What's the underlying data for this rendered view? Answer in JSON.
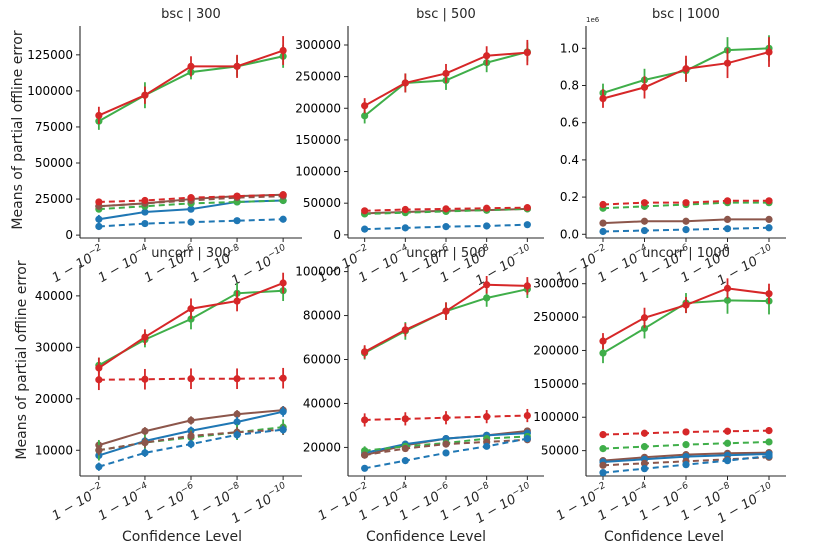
{
  "figure": {
    "ylabel": "Means of partial offline error",
    "xlabel": "Confidence Level",
    "confidence_levels": [
      "1 − 10^−2",
      "1 − 10^−4",
      "1 − 10^−6",
      "1 − 10^−8",
      "1 − 10^−10"
    ]
  },
  "colors": {
    "blue": "#1f77b4",
    "green": "#3fae49",
    "red": "#d62728",
    "brown": "#8c564b"
  },
  "chart_data": [
    {
      "type": "line",
      "title": "bsc | 300",
      "xlabel": "",
      "ylabel": "Means of partial offline error",
      "categories": [
        "1-1e-2",
        "1-1e-4",
        "1-1e-6",
        "1-1e-8",
        "1-1e-10"
      ],
      "ylim": [
        -2000,
        145000
      ],
      "yticks": [
        0,
        25000,
        50000,
        75000,
        100000,
        125000
      ],
      "ytick_labels": [
        "0",
        "25000",
        "50000",
        "75000",
        "100000",
        "125000"
      ],
      "exponent": "",
      "series": [
        {
          "color": "green",
          "style": "solid",
          "values": [
            79000,
            97000,
            113000,
            117000,
            124000
          ],
          "err": [
            6000,
            9000,
            5000,
            7000,
            8000
          ]
        },
        {
          "color": "red",
          "style": "solid",
          "values": [
            83000,
            97000,
            117000,
            117000,
            128000
          ],
          "err": [
            6000,
            6000,
            7000,
            8000,
            10000
          ]
        },
        {
          "color": "blue",
          "style": "solid",
          "values": [
            11000,
            16000,
            18000,
            23000,
            24000
          ],
          "err": [
            3000,
            2000,
            2000,
            2000,
            2000
          ]
        },
        {
          "color": "brown",
          "style": "solid",
          "values": [
            20000,
            22000,
            25000,
            27000,
            28000
          ],
          "err": [
            1500,
            1500,
            1500,
            1500,
            1500
          ]
        },
        {
          "color": "green",
          "style": "dashed",
          "values": [
            18000,
            20000,
            22000,
            23000,
            24000
          ],
          "err": [
            1500,
            1500,
            1500,
            1500,
            1500
          ]
        },
        {
          "color": "brown",
          "style": "dashed",
          "values": [
            20000,
            22000,
            24000,
            26000,
            27000
          ],
          "err": [
            1500,
            1500,
            1500,
            1500,
            1500
          ]
        },
        {
          "color": "red",
          "style": "dashed",
          "values": [
            23000,
            24000,
            26000,
            27000,
            28000
          ],
          "err": [
            1500,
            1500,
            1500,
            1500,
            1500
          ]
        },
        {
          "color": "blue",
          "style": "dashed",
          "values": [
            6000,
            8000,
            9000,
            10000,
            11000
          ],
          "err": [
            1000,
            1000,
            1000,
            1000,
            1000
          ]
        }
      ]
    },
    {
      "type": "line",
      "title": "bsc | 500",
      "xlabel": "",
      "ylabel": "",
      "categories": [
        "1-1e-2",
        "1-1e-4",
        "1-1e-6",
        "1-1e-8",
        "1-1e-10"
      ],
      "ylim": [
        -5000,
        330000
      ],
      "yticks": [
        0,
        50000,
        100000,
        150000,
        200000,
        250000,
        300000
      ],
      "ytick_labels": [
        "0",
        "50000",
        "100000",
        "150000",
        "200000",
        "250000",
        "300000"
      ],
      "exponent": "",
      "series": [
        {
          "color": "green",
          "style": "solid",
          "values": [
            188000,
            240000,
            244000,
            272000,
            289000
          ],
          "err": [
            12000,
            15000,
            15000,
            15000,
            15000
          ]
        },
        {
          "color": "red",
          "style": "solid",
          "values": [
            204000,
            240000,
            255000,
            283000,
            288000
          ],
          "err": [
            12000,
            15000,
            15000,
            15000,
            20000
          ]
        },
        {
          "color": "brown",
          "style": "solid",
          "values": [
            34000,
            36000,
            38000,
            39000,
            41000
          ],
          "err": [
            2000,
            2000,
            2000,
            2000,
            2000
          ]
        },
        {
          "color": "green",
          "style": "dashed",
          "values": [
            33000,
            35000,
            37000,
            39000,
            41000
          ],
          "err": [
            2000,
            2000,
            2000,
            2000,
            2000
          ]
        },
        {
          "color": "red",
          "style": "dashed",
          "values": [
            38000,
            40000,
            41000,
            42000,
            43000
          ],
          "err": [
            2000,
            2000,
            2000,
            2000,
            2000
          ]
        },
        {
          "color": "blue",
          "style": "dashed",
          "values": [
            9000,
            11000,
            13000,
            14000,
            16000
          ],
          "err": [
            1000,
            1000,
            1000,
            1000,
            1000
          ]
        }
      ]
    },
    {
      "type": "line",
      "title": "bsc | 1000",
      "xlabel": "",
      "ylabel": "",
      "categories": [
        "1-1e-2",
        "1-1e-4",
        "1-1e-6",
        "1-1e-8",
        "1-1e-10"
      ],
      "ylim": [
        -0.02,
        1.12
      ],
      "yticks": [
        0.0,
        0.2,
        0.4,
        0.6,
        0.8,
        1.0
      ],
      "ytick_labels": [
        "0.0",
        "0.2",
        "0.4",
        "0.6",
        "0.8",
        "1.0"
      ],
      "exponent": "1e6",
      "series": [
        {
          "color": "green",
          "style": "solid",
          "values": [
            0.76,
            0.83,
            0.88,
            0.99,
            1.0
          ],
          "err": [
            0.05,
            0.06,
            0.06,
            0.07,
            0.07
          ]
        },
        {
          "color": "red",
          "style": "solid",
          "values": [
            0.73,
            0.79,
            0.89,
            0.92,
            0.98
          ],
          "err": [
            0.05,
            0.06,
            0.07,
            0.08,
            0.08
          ]
        },
        {
          "color": "green",
          "style": "dashed",
          "values": [
            0.14,
            0.15,
            0.16,
            0.17,
            0.17
          ],
          "err": [
            0.01,
            0.01,
            0.01,
            0.01,
            0.01
          ]
        },
        {
          "color": "red",
          "style": "dashed",
          "values": [
            0.16,
            0.17,
            0.17,
            0.18,
            0.18
          ],
          "err": [
            0.01,
            0.01,
            0.01,
            0.01,
            0.01
          ]
        },
        {
          "color": "brown",
          "style": "solid",
          "values": [
            0.06,
            0.07,
            0.07,
            0.08,
            0.08
          ],
          "err": [
            0.005,
            0.005,
            0.005,
            0.005,
            0.005
          ]
        },
        {
          "color": "blue",
          "style": "dashed",
          "values": [
            0.015,
            0.02,
            0.025,
            0.03,
            0.035
          ],
          "err": [
            0.003,
            0.003,
            0.003,
            0.003,
            0.003
          ]
        }
      ]
    },
    {
      "type": "line",
      "title": "uncorr | 300",
      "xlabel": "Confidence Level",
      "ylabel": "Means of partial offline error",
      "categories": [
        "1-1e-2",
        "1-1e-4",
        "1-1e-6",
        "1-1e-8",
        "1-1e-10"
      ],
      "ylim": [
        5000,
        46000
      ],
      "yticks": [
        10000,
        20000,
        30000,
        40000
      ],
      "ytick_labels": [
        "10000",
        "20000",
        "30000",
        "40000"
      ],
      "exponent": "",
      "series": [
        {
          "color": "green",
          "style": "solid",
          "values": [
            26500,
            31500,
            35500,
            40500,
            41000
          ],
          "err": [
            1500,
            1500,
            2000,
            2000,
            2000
          ]
        },
        {
          "color": "red",
          "style": "solid",
          "values": [
            26000,
            32000,
            37500,
            39000,
            42500
          ],
          "err": [
            2000,
            1500,
            2000,
            2000,
            2000
          ]
        },
        {
          "color": "red",
          "style": "dashed",
          "values": [
            23700,
            23800,
            23900,
            23900,
            24000
          ],
          "err": [
            2000,
            2000,
            2000,
            2000,
            2000
          ]
        },
        {
          "color": "brown",
          "style": "solid",
          "values": [
            11000,
            13700,
            15800,
            17000,
            17800
          ],
          "err": [
            800,
            800,
            800,
            800,
            800
          ]
        },
        {
          "color": "blue",
          "style": "solid",
          "values": [
            9000,
            11800,
            13800,
            15500,
            17500
          ],
          "err": [
            800,
            800,
            800,
            1000,
            1000
          ]
        },
        {
          "color": "green",
          "style": "dashed",
          "values": [
            10000,
            11500,
            12500,
            13500,
            14500
          ],
          "err": [
            2000,
            1500,
            1500,
            1500,
            1500
          ]
        },
        {
          "color": "brown",
          "style": "dashed",
          "values": [
            10000,
            11500,
            12800,
            13500,
            14000
          ],
          "err": [
            1000,
            1000,
            1000,
            1000,
            1000
          ]
        },
        {
          "color": "blue",
          "style": "dashed",
          "values": [
            6800,
            9500,
            11200,
            13000,
            14000
          ],
          "err": [
            800,
            800,
            800,
            800,
            800
          ]
        }
      ]
    },
    {
      "type": "line",
      "title": "uncorr | 500",
      "xlabel": "Confidence Level",
      "ylabel": "",
      "categories": [
        "1-1e-2",
        "1-1e-4",
        "1-1e-6",
        "1-1e-8",
        "1-1e-10"
      ],
      "ylim": [
        7000,
        103000
      ],
      "yticks": [
        20000,
        40000,
        60000,
        80000,
        100000
      ],
      "ytick_labels": [
        "20000",
        "40000",
        "60000",
        "80000",
        "100000"
      ],
      "exponent": "",
      "series": [
        {
          "color": "green",
          "style": "solid",
          "values": [
            63000,
            73000,
            82000,
            88000,
            92000
          ],
          "err": [
            3000,
            4000,
            4000,
            4000,
            4000
          ]
        },
        {
          "color": "red",
          "style": "solid",
          "values": [
            63500,
            73500,
            82000,
            94000,
            93500
          ],
          "err": [
            3000,
            3000,
            4000,
            4000,
            4000
          ]
        },
        {
          "color": "red",
          "style": "dashed",
          "values": [
            32500,
            33000,
            33500,
            34000,
            34500
          ],
          "err": [
            3000,
            3000,
            3000,
            3000,
            3000
          ]
        },
        {
          "color": "brown",
          "style": "solid",
          "values": [
            16500,
            21000,
            24000,
            25500,
            27500
          ],
          "err": [
            1000,
            1000,
            1000,
            1000,
            1000
          ]
        },
        {
          "color": "blue",
          "style": "solid",
          "values": [
            17500,
            21500,
            24000,
            25500,
            26500
          ],
          "err": [
            1000,
            1000,
            1000,
            1000,
            1000
          ]
        },
        {
          "color": "green",
          "style": "dashed",
          "values": [
            18500,
            20500,
            22000,
            24000,
            25000
          ],
          "err": [
            2000,
            1500,
            1500,
            1500,
            1500
          ]
        },
        {
          "color": "brown",
          "style": "dashed",
          "values": [
            16500,
            19500,
            21500,
            22500,
            23500
          ],
          "err": [
            1000,
            1000,
            1000,
            1000,
            1000
          ]
        },
        {
          "color": "blue",
          "style": "dashed",
          "values": [
            10500,
            14000,
            17500,
            20500,
            24000
          ],
          "err": [
            800,
            800,
            800,
            800,
            800
          ]
        }
      ]
    },
    {
      "type": "line",
      "title": "uncorr | 1000",
      "xlabel": "Confidence Level",
      "ylabel": "",
      "categories": [
        "1-1e-2",
        "1-1e-4",
        "1-1e-6",
        "1-1e-8",
        "1-1e-10"
      ],
      "ylim": [
        12000,
        328000
      ],
      "yticks": [
        50000,
        100000,
        150000,
        200000,
        250000,
        300000
      ],
      "ytick_labels": [
        "50000",
        "100000",
        "150000",
        "200000",
        "250000",
        "300000"
      ],
      "exponent": "",
      "series": [
        {
          "color": "green",
          "style": "solid",
          "values": [
            196000,
            233000,
            271000,
            275000,
            274000
          ],
          "err": [
            15000,
            15000,
            15000,
            20000,
            20000
          ]
        },
        {
          "color": "red",
          "style": "solid",
          "values": [
            214000,
            249000,
            268000,
            293000,
            285000
          ],
          "err": [
            12000,
            15000,
            12000,
            15000,
            15000
          ]
        },
        {
          "color": "red",
          "style": "dashed",
          "values": [
            74000,
            76000,
            78000,
            79000,
            80000
          ],
          "err": [
            5000,
            5000,
            5000,
            5000,
            5000
          ]
        },
        {
          "color": "green",
          "style": "dashed",
          "values": [
            53000,
            56000,
            59000,
            61000,
            63000
          ],
          "err": [
            3000,
            3000,
            3000,
            3000,
            3000
          ]
        },
        {
          "color": "brown",
          "style": "solid",
          "values": [
            35000,
            40000,
            44000,
            46000,
            47000
          ],
          "err": [
            2000,
            2000,
            2000,
            2000,
            2000
          ]
        },
        {
          "color": "blue",
          "style": "solid",
          "values": [
            33000,
            37000,
            41000,
            43000,
            45000
          ],
          "err": [
            2000,
            2000,
            2000,
            2000,
            2000
          ]
        },
        {
          "color": "brown",
          "style": "dashed",
          "values": [
            28000,
            31000,
            34000,
            37000,
            40000
          ],
          "err": [
            2000,
            2000,
            2000,
            2000,
            2000
          ]
        },
        {
          "color": "blue",
          "style": "dashed",
          "values": [
            17000,
            23000,
            29000,
            35000,
            42000
          ],
          "err": [
            1500,
            1500,
            1500,
            1500,
            1500
          ]
        }
      ]
    }
  ]
}
